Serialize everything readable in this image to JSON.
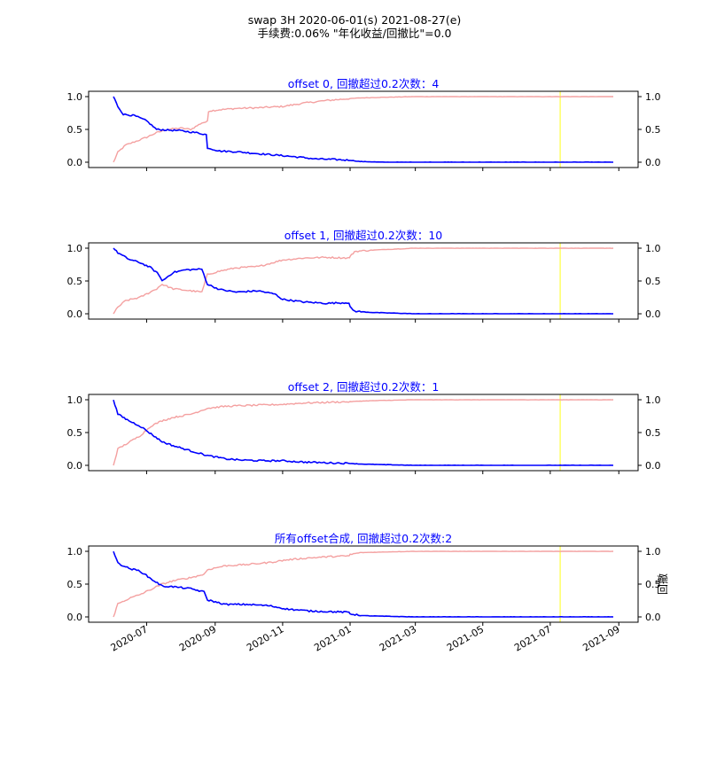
{
  "header": {
    "title_line1": "swap 3H 2020-06-01(s) 2021-08-27(e)",
    "title_line2": "手续费:0.06% \"年化收益/回撤比\"=0.0"
  },
  "colors": {
    "drawdown_line": "#0000ff",
    "equity_line": "#f4a0a0",
    "marker_line": "#ffff66",
    "title_text": "#0000ff"
  },
  "chart_data": [
    {
      "type": "line",
      "title": "offset 0, 回撤超过0.2次数：4",
      "x_range": [
        "2020-06-01",
        "2021-08-27"
      ],
      "ylim": [
        0,
        1
      ],
      "y_ticks": [
        "0.0",
        "0.5",
        "1.0"
      ],
      "right_y_ticks": [
        "0.0",
        "0.5",
        "1.0"
      ],
      "marker_date": "2021-07-10",
      "series": [
        {
          "color": "#f4a0a0",
          "axis": "right",
          "x": [
            "2020-06-01",
            "2020-06-05",
            "2020-06-12",
            "2020-06-20",
            "2020-07-01",
            "2020-07-10",
            "2020-07-20",
            "2020-08-01",
            "2020-08-10",
            "2020-08-20",
            "2020-08-25",
            "2020-08-26",
            "2020-09-05",
            "2020-09-20",
            "2020-10-10",
            "2020-11-01",
            "2020-11-20",
            "2020-12-10",
            "2021-01-01",
            "2021-01-10",
            "2021-02-01",
            "2021-03-01",
            "2021-05-01",
            "2021-07-01",
            "2021-08-27"
          ],
          "values": [
            0.0,
            0.15,
            0.26,
            0.31,
            0.38,
            0.45,
            0.5,
            0.52,
            0.5,
            0.6,
            0.62,
            0.78,
            0.8,
            0.82,
            0.83,
            0.85,
            0.9,
            0.94,
            0.97,
            0.98,
            0.99,
            1.0,
            1.0,
            1.0,
            1.0
          ]
        },
        {
          "color": "#0000ff",
          "axis": "left",
          "x": [
            "2020-06-01",
            "2020-06-05",
            "2020-06-10",
            "2020-06-20",
            "2020-07-01",
            "2020-07-10",
            "2020-07-20",
            "2020-08-01",
            "2020-08-15",
            "2020-08-24",
            "2020-08-25",
            "2020-09-05",
            "2020-09-20",
            "2020-10-10",
            "2020-11-01",
            "2020-11-20",
            "2020-12-01",
            "2020-12-20",
            "2021-01-01",
            "2021-01-10",
            "2021-02-01",
            "2021-03-01",
            "2021-05-01",
            "2021-07-01",
            "2021-08-27"
          ],
          "values": [
            1.0,
            0.85,
            0.73,
            0.71,
            0.63,
            0.5,
            0.49,
            0.48,
            0.45,
            0.42,
            0.22,
            0.17,
            0.16,
            0.13,
            0.1,
            0.07,
            0.05,
            0.04,
            0.03,
            0.01,
            0.0,
            0.0,
            0.0,
            0.0,
            0.0
          ]
        }
      ]
    },
    {
      "type": "line",
      "title": "offset 1, 回撤超过0.2次数：10",
      "x_range": [
        "2020-06-01",
        "2021-08-27"
      ],
      "ylim": [
        0,
        1
      ],
      "y_ticks": [
        "0.0",
        "0.5",
        "1.0"
      ],
      "right_y_ticks": [
        "0.0",
        "0.5",
        "1.0"
      ],
      "marker_date": "2021-07-10",
      "series": [
        {
          "color": "#f4a0a0",
          "axis": "right",
          "x": [
            "2020-06-01",
            "2020-06-05",
            "2020-06-12",
            "2020-06-25",
            "2020-07-10",
            "2020-07-15",
            "2020-07-25",
            "2020-08-05",
            "2020-08-20",
            "2020-08-25",
            "2020-09-05",
            "2020-09-20",
            "2020-10-10",
            "2020-11-01",
            "2020-11-20",
            "2020-12-10",
            "2020-12-31",
            "2021-01-01",
            "2021-01-05",
            "2021-01-20",
            "2021-02-15",
            "2021-03-01",
            "2021-05-01",
            "2021-07-01",
            "2021-08-27"
          ],
          "values": [
            0.0,
            0.1,
            0.2,
            0.25,
            0.38,
            0.45,
            0.38,
            0.36,
            0.33,
            0.6,
            0.65,
            0.7,
            0.72,
            0.82,
            0.85,
            0.86,
            0.85,
            0.87,
            0.95,
            0.97,
            0.99,
            1.0,
            1.0,
            1.0,
            1.0
          ]
        },
        {
          "color": "#0000ff",
          "axis": "left",
          "x": [
            "2020-06-01",
            "2020-06-05",
            "2020-06-15",
            "2020-06-25",
            "2020-07-05",
            "2020-07-12",
            "2020-07-15",
            "2020-07-25",
            "2020-08-05",
            "2020-08-20",
            "2020-08-25",
            "2020-09-05",
            "2020-09-20",
            "2020-10-10",
            "2020-10-25",
            "2020-11-01",
            "2020-11-20",
            "2020-12-10",
            "2020-12-31",
            "2021-01-01",
            "2021-01-05",
            "2021-01-20",
            "2021-03-01",
            "2021-05-01",
            "2021-08-27"
          ],
          "values": [
            1.0,
            0.93,
            0.83,
            0.78,
            0.7,
            0.6,
            0.5,
            0.63,
            0.67,
            0.68,
            0.45,
            0.37,
            0.33,
            0.35,
            0.3,
            0.22,
            0.18,
            0.16,
            0.17,
            0.1,
            0.04,
            0.02,
            0.0,
            0.0,
            0.0
          ]
        }
      ]
    },
    {
      "type": "line",
      "title": "offset 2, 回撤超过0.2次数：1",
      "x_range": [
        "2020-06-01",
        "2021-08-27"
      ],
      "ylim": [
        0,
        1
      ],
      "y_ticks": [
        "0.0",
        "0.5",
        "1.0"
      ],
      "right_y_ticks": [
        "0.0",
        "0.5",
        "1.0"
      ],
      "marker_date": "2021-07-10",
      "series": [
        {
          "color": "#f4a0a0",
          "axis": "right",
          "x": [
            "2020-06-01",
            "2020-06-05",
            "2020-06-15",
            "2020-06-25",
            "2020-07-05",
            "2020-07-15",
            "2020-07-25",
            "2020-08-10",
            "2020-08-25",
            "2020-09-10",
            "2020-09-25",
            "2020-10-15",
            "2020-11-01",
            "2020-11-20",
            "2020-12-10",
            "2021-01-01",
            "2021-01-10",
            "2021-02-01",
            "2021-03-01",
            "2021-05-01",
            "2021-07-01",
            "2021-08-27"
          ],
          "values": [
            0.0,
            0.25,
            0.35,
            0.45,
            0.6,
            0.68,
            0.73,
            0.78,
            0.87,
            0.9,
            0.91,
            0.92,
            0.93,
            0.95,
            0.96,
            0.97,
            0.98,
            0.99,
            1.0,
            1.0,
            1.0,
            1.0
          ]
        },
        {
          "color": "#0000ff",
          "axis": "left",
          "x": [
            "2020-06-01",
            "2020-06-05",
            "2020-06-15",
            "2020-06-25",
            "2020-07-05",
            "2020-07-15",
            "2020-07-25",
            "2020-08-10",
            "2020-08-25",
            "2020-09-10",
            "2020-09-25",
            "2020-10-15",
            "2020-11-01",
            "2020-11-20",
            "2020-12-10",
            "2021-01-01",
            "2021-01-10",
            "2021-02-01",
            "2021-03-01",
            "2021-05-01",
            "2021-07-01",
            "2021-08-27"
          ],
          "values": [
            1.0,
            0.78,
            0.68,
            0.6,
            0.48,
            0.36,
            0.3,
            0.22,
            0.15,
            0.1,
            0.08,
            0.07,
            0.07,
            0.05,
            0.04,
            0.03,
            0.02,
            0.01,
            0.0,
            0.0,
            0.0,
            0.0
          ]
        }
      ]
    },
    {
      "type": "line",
      "title": "所有offset合成, 回撤超过0.2次数:2",
      "right_ylabel": "回撤",
      "x_range": [
        "2020-06-01",
        "2021-08-27"
      ],
      "ylim": [
        0,
        1
      ],
      "y_ticks": [
        "0.0",
        "0.5",
        "1.0"
      ],
      "right_y_ticks": [
        "0.0",
        "0.5",
        "1.0"
      ],
      "x_ticks": [
        "2020-07",
        "2020-09",
        "2020-11",
        "2021-01",
        "2021-03",
        "2021-05",
        "2021-07",
        "2021-09"
      ],
      "marker_date": "2021-07-10",
      "series": [
        {
          "color": "#f4a0a0",
          "axis": "right",
          "x": [
            "2020-06-01",
            "2020-06-05",
            "2020-06-15",
            "2020-06-25",
            "2020-07-05",
            "2020-07-15",
            "2020-07-25",
            "2020-08-10",
            "2020-08-22",
            "2020-08-25",
            "2020-09-10",
            "2020-10-01",
            "2020-10-20",
            "2020-11-05",
            "2020-11-25",
            "2020-12-15",
            "2020-12-31",
            "2021-01-01",
            "2021-01-10",
            "2021-02-01",
            "2021-03-01",
            "2021-05-01",
            "2021-07-01",
            "2021-08-27"
          ],
          "values": [
            0.0,
            0.2,
            0.28,
            0.34,
            0.42,
            0.5,
            0.55,
            0.6,
            0.65,
            0.72,
            0.78,
            0.8,
            0.83,
            0.87,
            0.9,
            0.92,
            0.93,
            0.95,
            0.98,
            0.99,
            1.0,
            1.0,
            1.0,
            1.0
          ]
        },
        {
          "color": "#0000ff",
          "axis": "left",
          "x": [
            "2020-06-01",
            "2020-06-05",
            "2020-06-15",
            "2020-06-25",
            "2020-07-05",
            "2020-07-15",
            "2020-07-25",
            "2020-08-10",
            "2020-08-22",
            "2020-08-25",
            "2020-09-10",
            "2020-10-01",
            "2020-10-20",
            "2020-11-05",
            "2020-11-25",
            "2020-12-15",
            "2020-12-31",
            "2021-01-01",
            "2021-01-10",
            "2021-02-01",
            "2021-03-01",
            "2021-05-01",
            "2021-07-01",
            "2021-08-27"
          ],
          "values": [
            1.0,
            0.82,
            0.74,
            0.7,
            0.58,
            0.47,
            0.46,
            0.43,
            0.38,
            0.26,
            0.19,
            0.19,
            0.17,
            0.12,
            0.09,
            0.08,
            0.07,
            0.05,
            0.02,
            0.01,
            0.0,
            0.0,
            0.0,
            0.0
          ]
        }
      ]
    }
  ]
}
